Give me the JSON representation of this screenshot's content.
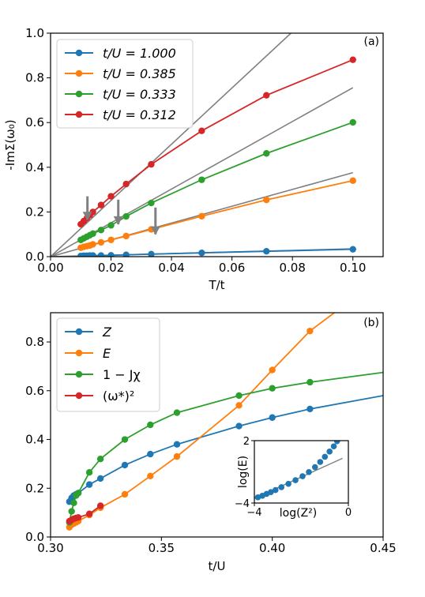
{
  "colors": {
    "blue": "#1f77b4",
    "orange": "#ff7f0e",
    "green": "#2ca02c",
    "red": "#d62728",
    "gray": "#808080"
  },
  "chart_data": [
    {
      "panel": "(a)",
      "type": "line",
      "xlabel": "T/t",
      "ylabel": "-ImΣ(ω₀)",
      "xlim": [
        0.0,
        0.11
      ],
      "ylim": [
        0.0,
        1.0
      ],
      "xticks": [
        "0.00",
        "0.02",
        "0.04",
        "0.06",
        "0.08",
        "0.10"
      ],
      "yticks": [
        "0.0",
        "0.2",
        "0.4",
        "0.6",
        "0.8",
        "1.0"
      ],
      "legend_position": "top-left",
      "series": [
        {
          "name": "t/U = 1.000",
          "color": "blue",
          "x": [
            0.01,
            0.011,
            0.012,
            0.013,
            0.014,
            0.0167,
            0.02,
            0.025,
            0.0333,
            0.05,
            0.0714,
            0.1
          ],
          "y": [
            0.003,
            0.004,
            0.004,
            0.005,
            0.005,
            0.005,
            0.006,
            0.008,
            0.011,
            0.017,
            0.024,
            0.033
          ]
        },
        {
          "name": "t/U = 0.385",
          "color": "orange",
          "x": [
            0.01,
            0.011,
            0.012,
            0.013,
            0.014,
            0.0167,
            0.02,
            0.025,
            0.0333,
            0.05,
            0.0714,
            0.1
          ],
          "y": [
            0.04,
            0.044,
            0.047,
            0.05,
            0.055,
            0.064,
            0.075,
            0.092,
            0.122,
            0.181,
            0.254,
            0.34
          ]
        },
        {
          "name": "t/U = 0.333",
          "color": "green",
          "x": [
            0.01,
            0.011,
            0.012,
            0.013,
            0.014,
            0.0167,
            0.02,
            0.025,
            0.0333,
            0.05,
            0.0714,
            0.1
          ],
          "y": [
            0.075,
            0.082,
            0.089,
            0.096,
            0.103,
            0.119,
            0.14,
            0.18,
            0.24,
            0.344,
            0.462,
            0.601
          ]
        },
        {
          "name": "t/U = 0.312",
          "color": "red",
          "x": [
            0.01,
            0.011,
            0.012,
            0.013,
            0.014,
            0.0167,
            0.02,
            0.025,
            0.0333,
            0.05,
            0.0714,
            0.1
          ],
          "y": [
            0.145,
            0.159,
            0.172,
            0.186,
            0.2,
            0.231,
            0.27,
            0.325,
            0.413,
            0.563,
            0.722,
            0.881
          ]
        }
      ],
      "reference_lines": [
        {
          "color": "gray",
          "x": [
            0.0,
            0.1
          ],
          "y": [
            0.0,
            0.035
          ]
        },
        {
          "color": "gray",
          "x": [
            0.0,
            0.1
          ],
          "y": [
            0.0,
            0.376
          ]
        },
        {
          "color": "gray",
          "x": [
            0.0,
            0.1
          ],
          "y": [
            0.0,
            0.756
          ]
        },
        {
          "color": "gray",
          "x": [
            0.0,
            0.0795
          ],
          "y": [
            0.0,
            1.0
          ]
        }
      ],
      "arrows": [
        {
          "x": 0.0122,
          "y_from": 0.27,
          "y_to": 0.19
        },
        {
          "x": 0.0224,
          "y_from": 0.255,
          "y_to": 0.17
        },
        {
          "x": 0.0347,
          "y_from": 0.22,
          "y_to": 0.125
        }
      ]
    },
    {
      "panel": "(b)",
      "type": "line",
      "xlabel": "t/U",
      "ylabel": "",
      "xlim": [
        0.3,
        0.45
      ],
      "ylim": [
        0.0,
        0.92
      ],
      "xticks": [
        "0.30",
        "0.35",
        "0.40",
        "0.45"
      ],
      "yticks": [
        "0.0",
        "0.2",
        "0.4",
        "0.6",
        "0.8"
      ],
      "legend_position": "top-left",
      "series": [
        {
          "name": "Z",
          "italic": true,
          "color": "blue",
          "x": [
            0.3085,
            0.3095,
            0.3105,
            0.3115,
            0.3125,
            0.3175,
            0.3225,
            0.3335,
            0.345,
            0.357,
            0.385,
            0.4,
            0.417,
            0.45
          ],
          "y": [
            0.145,
            0.16,
            0.17,
            0.175,
            0.18,
            0.215,
            0.24,
            0.295,
            0.34,
            0.38,
            0.455,
            0.49,
            0.525,
            0.58
          ],
          "markers_until_index": 12
        },
        {
          "name": "E",
          "italic": true,
          "color": "orange",
          "x": [
            0.3085,
            0.3095,
            0.3105,
            0.3115,
            0.3125,
            0.3175,
            0.3225,
            0.3335,
            0.345,
            0.357,
            0.385,
            0.4,
            0.417,
            0.428
          ],
          "y": [
            0.04,
            0.05,
            0.055,
            0.06,
            0.065,
            0.09,
            0.12,
            0.175,
            0.25,
            0.33,
            0.54,
            0.685,
            0.845,
            0.92
          ],
          "markers_until_index": 12
        },
        {
          "name": "1 − Jχ",
          "italic": false,
          "color": "green",
          "x": [
            0.3085,
            0.3095,
            0.3105,
            0.3115,
            0.3125,
            0.3175,
            0.3225,
            0.3335,
            0.345,
            0.357,
            0.385,
            0.4,
            0.417,
            0.45
          ],
          "y": [
            0.06,
            0.105,
            0.14,
            0.17,
            0.18,
            0.265,
            0.32,
            0.4,
            0.46,
            0.51,
            0.58,
            0.61,
            0.635,
            0.675
          ],
          "markers_until_index": 12
        },
        {
          "name": "(ω*)²",
          "italic": false,
          "color": "red",
          "x": [
            0.3085,
            0.3095,
            0.3105,
            0.3115,
            0.3125,
            0.3175,
            0.3225
          ],
          "y": [
            0.065,
            0.07,
            0.075,
            0.078,
            0.08,
            0.095,
            0.128
          ],
          "markers_until_index": 6
        }
      ],
      "inset": {
        "xlabel": "log(Z²)",
        "ylabel": "log(E)",
        "xlim": [
          -4.0,
          0.0
        ],
        "ylim": [
          -4.0,
          2.0
        ],
        "xticks": [
          "−4",
          "0"
        ],
        "yticks": [
          "−4",
          "2"
        ],
        "points": {
          "x": [
            -3.85,
            -3.66,
            -3.48,
            -3.3,
            -3.1,
            -2.85,
            -2.55,
            -2.25,
            -1.95,
            -1.68,
            -1.42,
            -1.2,
            -1.0,
            -0.8,
            -0.62,
            -0.48
          ],
          "y": [
            -3.45,
            -3.3,
            -3.12,
            -2.95,
            -2.75,
            -2.48,
            -2.15,
            -1.8,
            -1.42,
            -1.02,
            -0.55,
            -0.05,
            0.45,
            0.95,
            1.45,
            1.95
          ]
        },
        "fit_line": {
          "x": [
            -4.0,
            -0.25
          ],
          "y": [
            -3.55,
            0.3
          ]
        }
      }
    }
  ]
}
